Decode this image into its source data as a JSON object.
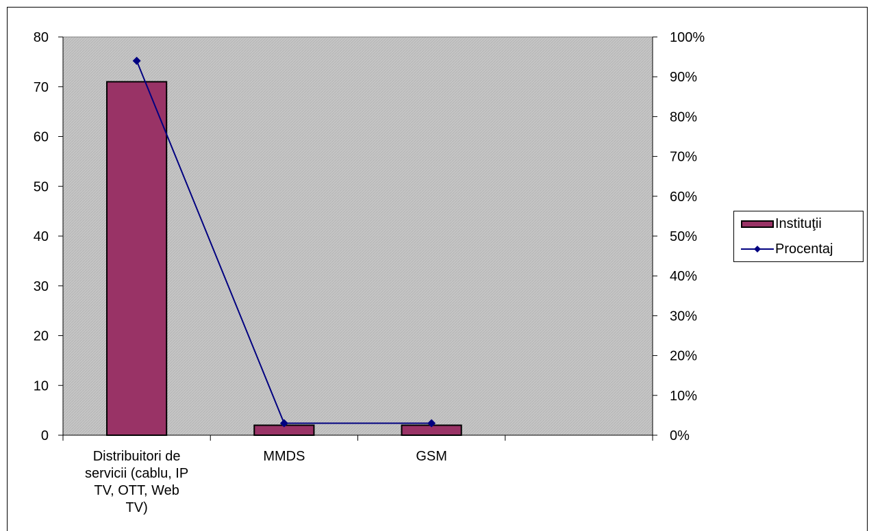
{
  "chart_data": {
    "type": "bar+line",
    "categories": [
      "Distribuitori de servicii  (cablu, IP TV, OTT, Web TV)",
      "MMDS",
      "GSM",
      ""
    ],
    "category_label_lines": [
      [
        "Distribuitori de",
        "servicii  (cablu, IP",
        "TV, OTT, Web",
        "TV)"
      ],
      [
        "MMDS"
      ],
      [
        "GSM"
      ],
      []
    ],
    "series": [
      {
        "name": "Instituţii",
        "type": "bar",
        "axis": "left",
        "values": [
          71,
          2,
          2,
          null
        ],
        "color": "#993366"
      },
      {
        "name": "Procentaj",
        "type": "line",
        "axis": "right",
        "values": [
          0.94,
          0.03,
          0.03,
          null
        ],
        "color": "#000080"
      }
    ],
    "y_left": {
      "min": 0,
      "max": 80,
      "ticks": [
        "0",
        "10",
        "20",
        "30",
        "40",
        "50",
        "60",
        "70",
        "80"
      ]
    },
    "y_right": {
      "min": 0,
      "max": 1,
      "ticks": [
        "0%",
        "10%",
        "20%",
        "30%",
        "40%",
        "50%",
        "60%",
        "70%",
        "80%",
        "90%",
        "100%"
      ]
    },
    "plot_background": "#c0c0c0",
    "grid": false,
    "legend_position": "right"
  }
}
